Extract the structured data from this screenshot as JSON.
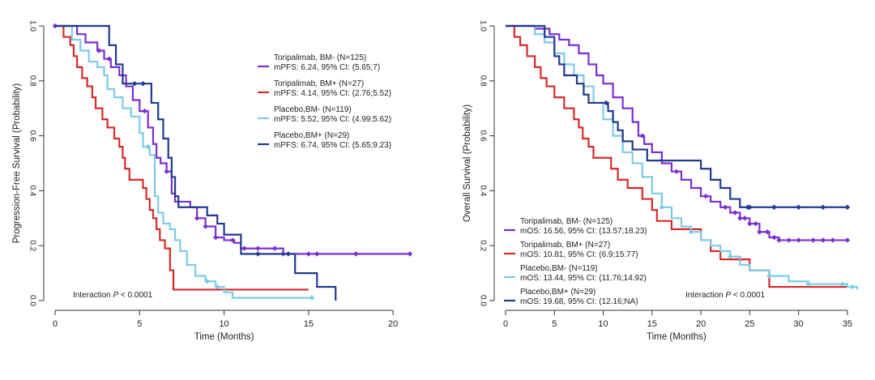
{
  "chart_data": [
    {
      "type": "line",
      "title": "",
      "xlabel": "Time (Months)",
      "ylabel": "Progression-Free Survival (Probability)",
      "xlim": [
        0,
        21
      ],
      "ylim": [
        0,
        1.0
      ],
      "xticks": [
        0,
        5,
        10,
        15,
        20
      ],
      "yticks": [
        0,
        0.2,
        0.4,
        0.6,
        0.8,
        1.0
      ],
      "xtick_labels": [
        "0",
        "5",
        "10",
        "15",
        "20"
      ],
      "ytick_labels": [
        "0.0",
        "0.2",
        "0.4",
        "0.6",
        "0.8",
        "1.0"
      ],
      "legend_position": "right",
      "annotation": {
        "prefix": "Interaction ",
        "italic": "P",
        "suffix": " < 0.0001"
      },
      "series": [
        {
          "name": "Toripalimab, BM- (N=125)",
          "stat": "mPFS: 6.24, 95% CI: (5.65;7)",
          "color": "#7B2FD0",
          "points": [
            [
              0,
              1.0
            ],
            [
              1.3,
              0.97
            ],
            [
              1.8,
              0.94
            ],
            [
              2.5,
              0.91
            ],
            [
              2.9,
              0.88
            ],
            [
              3.3,
              0.85
            ],
            [
              3.8,
              0.82
            ],
            [
              4.2,
              0.78
            ],
            [
              4.6,
              0.73
            ],
            [
              5.0,
              0.69
            ],
            [
              5.5,
              0.63
            ],
            [
              5.8,
              0.57
            ],
            [
              6.0,
              0.52
            ],
            [
              6.24,
              0.5
            ],
            [
              6.6,
              0.47
            ],
            [
              6.9,
              0.39
            ],
            [
              7.1,
              0.36
            ],
            [
              8.0,
              0.34
            ],
            [
              8.4,
              0.3
            ],
            [
              8.9,
              0.27
            ],
            [
              9.5,
              0.23
            ],
            [
              10.0,
              0.22
            ],
            [
              10.6,
              0.21
            ],
            [
              11.0,
              0.19
            ],
            [
              13.0,
              0.19
            ],
            [
              13.5,
              0.17
            ],
            [
              21.0,
              0.17
            ]
          ],
          "censor_x": [
            0,
            2.6,
            3.2,
            5.3,
            6.6,
            8.4,
            8.9,
            9.5,
            10.5,
            11.2,
            12.0,
            13.0,
            13.5,
            15.0,
            15.5,
            17.8,
            21.0
          ]
        },
        {
          "name": "Toripalimab, BM+ (N=27)",
          "stat": "mPFS: 4.14, 95% CI: (2.76;5.52)",
          "color": "#D82A2A",
          "points": [
            [
              0,
              1.0
            ],
            [
              0.5,
              0.96
            ],
            [
              0.9,
              0.93
            ],
            [
              1.1,
              0.89
            ],
            [
              1.3,
              0.85
            ],
            [
              1.6,
              0.81
            ],
            [
              1.9,
              0.78
            ],
            [
              2.2,
              0.74
            ],
            [
              2.4,
              0.7
            ],
            [
              2.8,
              0.66
            ],
            [
              3.1,
              0.63
            ],
            [
              3.5,
              0.59
            ],
            [
              3.8,
              0.56
            ],
            [
              4.0,
              0.52
            ],
            [
              4.14,
              0.48
            ],
            [
              4.4,
              0.44
            ],
            [
              5.2,
              0.41
            ],
            [
              5.4,
              0.37
            ],
            [
              5.6,
              0.33
            ],
            [
              5.8,
              0.3
            ],
            [
              6.0,
              0.26
            ],
            [
              6.2,
              0.22
            ],
            [
              6.5,
              0.19
            ],
            [
              6.8,
              0.11
            ],
            [
              7.0,
              0.04
            ],
            [
              15.0,
              0.04
            ]
          ],
          "censor_x": []
        },
        {
          "name": "Placebo,BM- (N=119)",
          "stat": "mPFS: 5.52, 95% CI: (4.99;5.62)",
          "color": "#7CCBEA",
          "points": [
            [
              0,
              1.0
            ],
            [
              1.0,
              0.95
            ],
            [
              1.5,
              0.91
            ],
            [
              2.0,
              0.87
            ],
            [
              2.5,
              0.85
            ],
            [
              2.9,
              0.82
            ],
            [
              3.1,
              0.77
            ],
            [
              3.5,
              0.74
            ],
            [
              4.0,
              0.7
            ],
            [
              4.5,
              0.67
            ],
            [
              5.0,
              0.61
            ],
            [
              5.2,
              0.56
            ],
            [
              5.6,
              0.53
            ],
            [
              5.9,
              0.38
            ],
            [
              6.1,
              0.32
            ],
            [
              6.4,
              0.28
            ],
            [
              6.8,
              0.26
            ],
            [
              7.1,
              0.22
            ],
            [
              7.4,
              0.18
            ],
            [
              7.8,
              0.13
            ],
            [
              8.3,
              0.09
            ],
            [
              8.9,
              0.07
            ],
            [
              9.5,
              0.05
            ],
            [
              10.0,
              0.03
            ],
            [
              10.5,
              0.01
            ],
            [
              15.2,
              0.01
            ]
          ],
          "censor_x": [
            5.5,
            5.5,
            9.0,
            9.6,
            15.2
          ]
        },
        {
          "name": "Placebo,BM+ (N=29)",
          "stat": "mPFS: 6.74, 95% CI: (5.65;9.23)",
          "color": "#213A8F",
          "points": [
            [
              0,
              1.0
            ],
            [
              2.6,
              1.0
            ],
            [
              3.2,
              0.93
            ],
            [
              3.6,
              0.86
            ],
            [
              4.0,
              0.79
            ],
            [
              5.3,
              0.79
            ],
            [
              5.7,
              0.72
            ],
            [
              6.1,
              0.66
            ],
            [
              6.4,
              0.59
            ],
            [
              6.7,
              0.52
            ],
            [
              6.9,
              0.45
            ],
            [
              7.1,
              0.38
            ],
            [
              7.3,
              0.34
            ],
            [
              8.8,
              0.34
            ],
            [
              9.0,
              0.31
            ],
            [
              9.6,
              0.28
            ],
            [
              10.0,
              0.24
            ],
            [
              10.7,
              0.24
            ],
            [
              11.0,
              0.17
            ],
            [
              13.8,
              0.17
            ],
            [
              14.2,
              0.1
            ],
            [
              15.3,
              0.1
            ],
            [
              15.5,
              0.05
            ],
            [
              16.6,
              0.05
            ],
            [
              16.6,
              0.0
            ]
          ],
          "censor_x": [
            4.7,
            5.2,
            12.0,
            13.8
          ]
        }
      ]
    },
    {
      "type": "line",
      "title": "",
      "xlabel": "Time (Months)",
      "ylabel": "Overall Survival (Probability)",
      "xlim": [
        0,
        36
      ],
      "ylim": [
        0,
        1.0
      ],
      "xticks": [
        0,
        5,
        10,
        15,
        20,
        25,
        30,
        35
      ],
      "yticks": [
        0,
        0.2,
        0.4,
        0.6,
        0.8,
        1.0
      ],
      "xtick_labels": [
        "0",
        "5",
        "10",
        "15",
        "20",
        "25",
        "30",
        "35"
      ],
      "ytick_labels": [
        "0.0",
        "0.2",
        "0.4",
        "0.6",
        "0.8",
        "1.0"
      ],
      "legend_position": "bottom-left",
      "annotation": {
        "prefix": "Interaction ",
        "italic": "P",
        "suffix": " < 0.0001"
      },
      "series": [
        {
          "name": "Toripalimab, BM- (N=125)",
          "stat": "mOS: 16.56, 95% CI: (13.57;18.23)",
          "color": "#7B2FD0",
          "points": [
            [
              0,
              1.0
            ],
            [
              3.0,
              0.99
            ],
            [
              4.5,
              0.97
            ],
            [
              5.5,
              0.95
            ],
            [
              6.5,
              0.93
            ],
            [
              7.5,
              0.9
            ],
            [
              8.5,
              0.86
            ],
            [
              9.3,
              0.82
            ],
            [
              10.0,
              0.79
            ],
            [
              11.0,
              0.74
            ],
            [
              12.0,
              0.7
            ],
            [
              13.0,
              0.65
            ],
            [
              13.6,
              0.6
            ],
            [
              14.2,
              0.57
            ],
            [
              15.0,
              0.54
            ],
            [
              16.0,
              0.5
            ],
            [
              17.0,
              0.47
            ],
            [
              18.0,
              0.44
            ],
            [
              19.0,
              0.41
            ],
            [
              20.0,
              0.38
            ],
            [
              21.0,
              0.36
            ],
            [
              22.0,
              0.34
            ],
            [
              23.0,
              0.32
            ],
            [
              24.0,
              0.3
            ],
            [
              25.0,
              0.28
            ],
            [
              26.0,
              0.25
            ],
            [
              27.0,
              0.23
            ],
            [
              28.0,
              0.22
            ],
            [
              35.0,
              0.22
            ]
          ],
          "censor_x": [
            14.0,
            17.5,
            20.5,
            22.5,
            23.5,
            24.0,
            24.5,
            25.0,
            25.6,
            26.0,
            26.8,
            27.5,
            28.0,
            29.0,
            30.0,
            31.5,
            32.5,
            33.5,
            35.0
          ]
        },
        {
          "name": "Toripalimab, BM+ (N=27)",
          "stat": "mOS: 10.81, 95% CI: (6.9;15.77)",
          "color": "#D82A2A",
          "points": [
            [
              0,
              1.0
            ],
            [
              0.9,
              0.96
            ],
            [
              1.5,
              0.93
            ],
            [
              2.2,
              0.89
            ],
            [
              3.0,
              0.85
            ],
            [
              3.6,
              0.81
            ],
            [
              4.2,
              0.78
            ],
            [
              5.0,
              0.74
            ],
            [
              6.0,
              0.7
            ],
            [
              7.0,
              0.66
            ],
            [
              7.5,
              0.63
            ],
            [
              7.9,
              0.59
            ],
            [
              8.5,
              0.56
            ],
            [
              9.0,
              0.52
            ],
            [
              10.0,
              0.52
            ],
            [
              10.81,
              0.48
            ],
            [
              11.5,
              0.44
            ],
            [
              12.5,
              0.41
            ],
            [
              14.0,
              0.37
            ],
            [
              15.0,
              0.33
            ],
            [
              15.5,
              0.29
            ],
            [
              16.5,
              0.29
            ],
            [
              17.0,
              0.26
            ],
            [
              19.5,
              0.26
            ],
            [
              20.0,
              0.22
            ],
            [
              21.0,
              0.18
            ],
            [
              22.0,
              0.15
            ],
            [
              24.0,
              0.15
            ],
            [
              25.0,
              0.11
            ],
            [
              26.5,
              0.11
            ],
            [
              27.0,
              0.05
            ],
            [
              35.0,
              0.05
            ]
          ],
          "censor_x": [
            24.0
          ]
        },
        {
          "name": "Placebo,BM- (N=119)",
          "stat": "mOS: 13.44, 95% CI: (11.76;14.92)",
          "color": "#7CCBEA",
          "points": [
            [
              0,
              1.0
            ],
            [
              3.0,
              0.97
            ],
            [
              4.0,
              0.94
            ],
            [
              5.0,
              0.9
            ],
            [
              6.0,
              0.86
            ],
            [
              7.0,
              0.82
            ],
            [
              8.0,
              0.78
            ],
            [
              9.0,
              0.72
            ],
            [
              10.0,
              0.66
            ],
            [
              11.0,
              0.6
            ],
            [
              12.0,
              0.54
            ],
            [
              13.0,
              0.5
            ],
            [
              14.0,
              0.45
            ],
            [
              15.0,
              0.39
            ],
            [
              16.0,
              0.34
            ],
            [
              17.0,
              0.3
            ],
            [
              18.0,
              0.27
            ],
            [
              19.0,
              0.25
            ],
            [
              20.0,
              0.22
            ],
            [
              21.0,
              0.2
            ],
            [
              22.0,
              0.18
            ],
            [
              23.0,
              0.16
            ],
            [
              24.0,
              0.13
            ],
            [
              25.0,
              0.11
            ],
            [
              27.0,
              0.09
            ],
            [
              29.0,
              0.07
            ],
            [
              31.0,
              0.06
            ],
            [
              35.0,
              0.05
            ],
            [
              36.0,
              0.04
            ]
          ],
          "censor_x": [
            16.0,
            19.0,
            23.0,
            27.0,
            31.0,
            34.5,
            35.5
          ]
        },
        {
          "name": "Placebo,BM+ (N=29)",
          "stat": "mOS: 19.68, 95% CI: (12.16;NA)",
          "color": "#213A8F",
          "points": [
            [
              0,
              1.0
            ],
            [
              3.0,
              1.0
            ],
            [
              4.0,
              0.96
            ],
            [
              5.0,
              0.89
            ],
            [
              5.5,
              0.86
            ],
            [
              6.0,
              0.82
            ],
            [
              7.3,
              0.79
            ],
            [
              8.0,
              0.75
            ],
            [
              8.5,
              0.72
            ],
            [
              9.0,
              0.72
            ],
            [
              10.5,
              0.69
            ],
            [
              11.0,
              0.65
            ],
            [
              11.5,
              0.62
            ],
            [
              12.0,
              0.58
            ],
            [
              13.0,
              0.55
            ],
            [
              14.5,
              0.51
            ],
            [
              19.7,
              0.51
            ],
            [
              20.0,
              0.48
            ],
            [
              21.0,
              0.44
            ],
            [
              22.0,
              0.41
            ],
            [
              23.0,
              0.37
            ],
            [
              24.0,
              0.34
            ],
            [
              35.0,
              0.34
            ]
          ],
          "censor_x": [
            10.3,
            24.8,
            25.0,
            27.5,
            30.0,
            32.5,
            35.0
          ]
        }
      ]
    }
  ]
}
